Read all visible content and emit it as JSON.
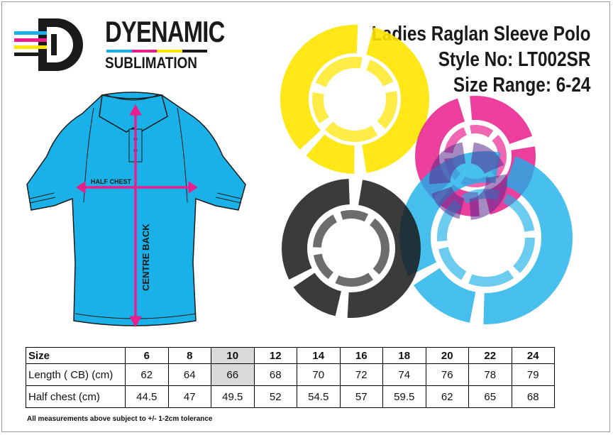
{
  "brand": {
    "name": "DYENAMIC",
    "sub": "SUBLIMATION",
    "stripe_colors": [
      "#1ab0e8",
      "#e91e8c",
      "#ffe500",
      "#1a1a1a"
    ]
  },
  "product": {
    "title": "Ladies Raglan Sleeve Polo",
    "style": "Style No: LT002SR",
    "size_range": "Size Range: 6-24"
  },
  "diagram": {
    "half_chest_label": "HALF CHEST",
    "centre_back_label": "CENTRE BACK",
    "shirt_color": "#1ab0e8",
    "arrow_color": "#e91e8c"
  },
  "table": {
    "headers": [
      "Size",
      "6",
      "8",
      "10",
      "12",
      "14",
      "16",
      "18",
      "20",
      "22",
      "24"
    ],
    "highlight_index": 3,
    "rows": [
      {
        "label": "Length ( CB) (cm)",
        "values": [
          "62",
          "64",
          "66",
          "68",
          "70",
          "72",
          "74",
          "76",
          "78",
          "79"
        ]
      },
      {
        "label": "Half chest (cm)",
        "values": [
          "44.5",
          "47",
          "49.5",
          "52",
          "54.5",
          "57",
          "59.5",
          "62",
          "65",
          "68"
        ]
      }
    ]
  },
  "note": "All measurements above subject to +/- 1-2cm tolerance",
  "colors": {
    "yellow": "#ffe500",
    "magenta": "#e91e8c",
    "cyan": "#1ab0e8",
    "black": "#1a1a1a"
  }
}
